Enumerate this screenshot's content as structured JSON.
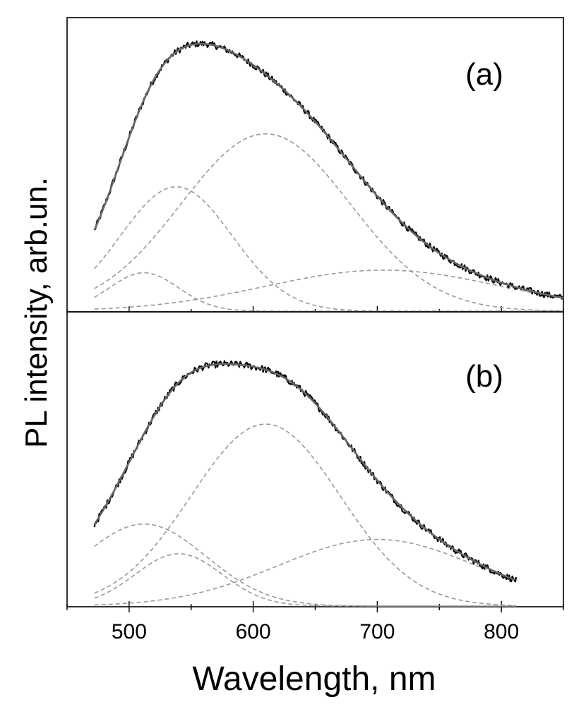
{
  "chart_data": {
    "type": "line",
    "ylabel": "PL intensity, arb.un.",
    "xlabel": "Wavelength, nm",
    "xlim": [
      450,
      850
    ],
    "xticks": [
      500,
      600,
      700,
      800
    ],
    "xtick_labels": [
      "500",
      "600",
      "700",
      "800"
    ],
    "y_ticks_shown": false,
    "grid": false,
    "legend": "none",
    "colors": {
      "measured": "#000000",
      "fit": "#666666",
      "components": "#999999"
    },
    "panels": [
      {
        "label": "(a)",
        "x_range": [
          472,
          850
        ],
        "ylim": [
          0,
          1.0
        ],
        "series": [
          {
            "role": "measured",
            "noisy": true,
            "noise": 0.012
          },
          {
            "role": "fit"
          },
          {
            "role": "component",
            "center": 512,
            "width": 28,
            "amplitude": 0.145
          },
          {
            "role": "component",
            "center": 538,
            "width": 45,
            "amplitude": 0.47
          },
          {
            "role": "component",
            "center": 610,
            "width": 68,
            "amplitude": 0.67
          },
          {
            "role": "component",
            "center": 705,
            "width": 95,
            "amplitude": 0.155
          }
        ]
      },
      {
        "label": "(b)",
        "x_range": [
          472,
          812
        ],
        "ylim": [
          0,
          1.0
        ],
        "series": [
          {
            "role": "measured",
            "noisy": true,
            "noise": 0.014
          },
          {
            "role": "fit"
          },
          {
            "role": "component",
            "center": 512,
            "width": 50,
            "amplitude": 0.345
          },
          {
            "role": "component",
            "center": 540,
            "width": 35,
            "amplitude": 0.22
          },
          {
            "role": "component",
            "center": 610,
            "width": 60,
            "amplitude": 0.765
          },
          {
            "role": "component",
            "center": 700,
            "width": 80,
            "amplitude": 0.28
          }
        ]
      }
    ]
  }
}
